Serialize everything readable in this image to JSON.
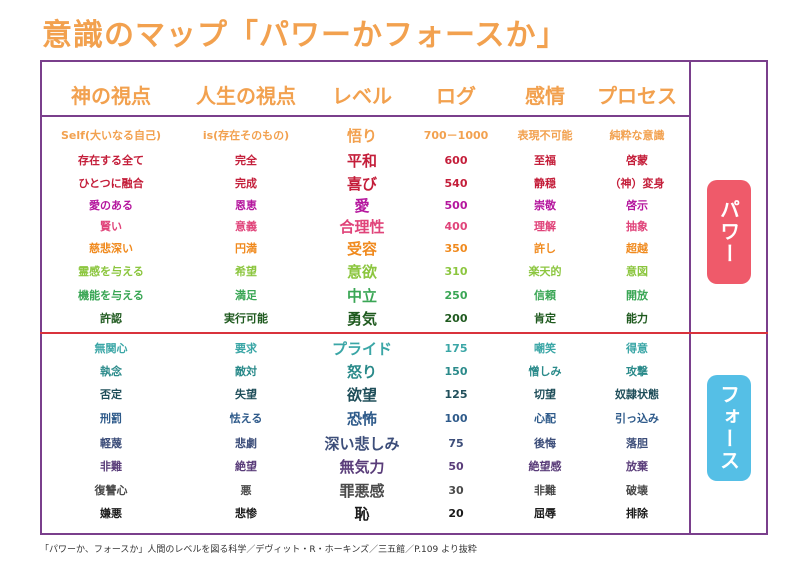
{
  "title": "意識のマップ「パワーかフォースか」",
  "headers": [
    "神の視点",
    "人生の視点",
    "レベル",
    "ログ",
    "感情",
    "プロセス"
  ],
  "rows": [
    {
      "god": "Self(大いなる自己)",
      "life": "is(存在そのもの)",
      "level": "悟り",
      "log": "700－1000",
      "emotion": "表現不可能",
      "process": "純粋な意識",
      "color": "#f2a14f"
    },
    {
      "god": "存在する全て",
      "life": "完全",
      "level": "平和",
      "log": "600",
      "emotion": "至福",
      "process": "啓蒙",
      "color": "#c41e3a"
    },
    {
      "god": "ひとつに融合",
      "life": "完成",
      "level": "喜び",
      "log": "540",
      "emotion": "静穏",
      "process": "（神）変身",
      "color": "#c41e3a"
    },
    {
      "god": "愛のある",
      "life": "恩恵",
      "level": "愛",
      "log": "500",
      "emotion": "崇敬",
      "process": "啓示",
      "color": "#b5179e"
    },
    {
      "god": "賢い",
      "life": "意義",
      "level": "合理性",
      "log": "400",
      "emotion": "理解",
      "process": "抽象",
      "color": "#e0447a"
    },
    {
      "god": "慈悲深い",
      "life": "円満",
      "level": "受容",
      "log": "350",
      "emotion": "許し",
      "process": "超越",
      "color": "#f08a1e"
    },
    {
      "god": "霊感を与える",
      "life": "希望",
      "level": "意欲",
      "log": "310",
      "emotion": "楽天的",
      "process": "意図",
      "color": "#8cc63f"
    },
    {
      "god": "機能を与える",
      "life": "満足",
      "level": "中立",
      "log": "250",
      "emotion": "信頼",
      "process": "開放",
      "color": "#3aa655"
    },
    {
      "god": "許認",
      "life": "実行可能",
      "level": "勇気",
      "log": "200",
      "emotion": "肯定",
      "process": "能力",
      "color": "#1f5a1f"
    },
    {
      "god": "無関心",
      "life": "要求",
      "level": "プライド",
      "log": "175",
      "emotion": "嘲笑",
      "process": "得意",
      "color": "#3aa6a6"
    },
    {
      "god": "執念",
      "life": "敵対",
      "level": "怒り",
      "log": "150",
      "emotion": "憎しみ",
      "process": "攻撃",
      "color": "#2a8a8a"
    },
    {
      "god": "否定",
      "life": "失望",
      "level": "欲望",
      "log": "125",
      "emotion": "切望",
      "process": "奴隷状態",
      "color": "#1f4e5a"
    },
    {
      "god": "刑罰",
      "life": "怯える",
      "level": "恐怖",
      "log": "100",
      "emotion": "心配",
      "process": "引っ込み",
      "color": "#2e5a8a"
    },
    {
      "god": "軽蔑",
      "life": "悲劇",
      "level": "深い悲しみ",
      "log": "75",
      "emotion": "後悔",
      "process": "落胆",
      "color": "#3d4e7a"
    },
    {
      "god": "非難",
      "life": "絶望",
      "level": "無気力",
      "log": "50",
      "emotion": "絶望感",
      "process": "放棄",
      "color": "#5a3d7a"
    },
    {
      "god": "復讐心",
      "life": "悪",
      "level": "罪悪感",
      "log": "30",
      "emotion": "非難",
      "process": "破壊",
      "color": "#4a4a4a"
    },
    {
      "god": "嫌悪",
      "life": "悲惨",
      "level": "恥",
      "log": "20",
      "emotion": "屈辱",
      "process": "排除",
      "color": "#1a1a1a"
    }
  ],
  "badges": {
    "power": "パワー",
    "force": "フォース",
    "power_color": "#ef5a6a",
    "force_color": "#55bfe6"
  },
  "footer": "「パワーか、フォースか」人間のレベルを図る科学／デヴィット・R・ホーキンズ／三五館／P.109 より抜粋"
}
